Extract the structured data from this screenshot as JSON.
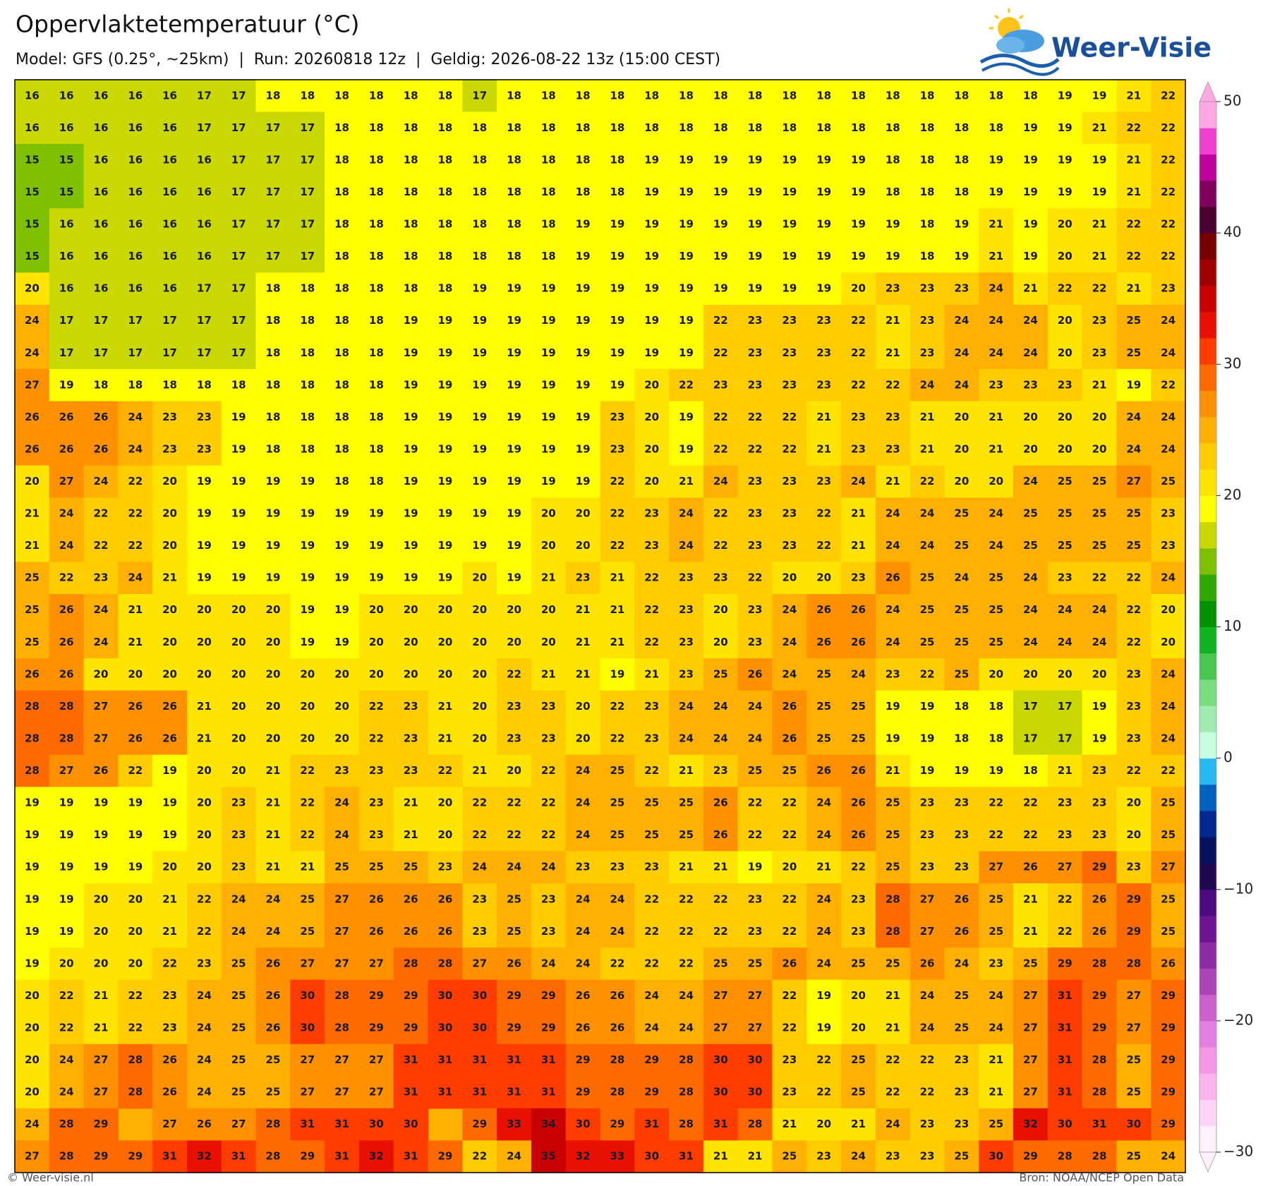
{
  "header": {
    "title": "Oppervlaktetemperatuur (°C)",
    "subtitle": "Model: GFS (0.25°, ~25km)  |  Run: 20260818 12z  |  Geldig: 2026-08-22 13z (15:00 CEST)"
  },
  "logo": "Weer-Visie",
  "grid": {
    "rows": [
      [
        16,
        16,
        16,
        16,
        16,
        17,
        17,
        18,
        18,
        18,
        18,
        18,
        18,
        17,
        18,
        18,
        18,
        18,
        18,
        18,
        18,
        18,
        18,
        18,
        18,
        18,
        18,
        18,
        18,
        18,
        19,
        19,
        21,
        22
      ],
      [
        16,
        16,
        16,
        16,
        16,
        17,
        17,
        17,
        17,
        18,
        18,
        18,
        18,
        18,
        18,
        18,
        18,
        18,
        18,
        18,
        18,
        18,
        18,
        18,
        18,
        18,
        18,
        18,
        18,
        19,
        19,
        21,
        22,
        22
      ],
      [
        15,
        15,
        16,
        16,
        16,
        16,
        17,
        17,
        17,
        18,
        18,
        18,
        18,
        18,
        18,
        18,
        18,
        18,
        19,
        19,
        19,
        19,
        19,
        19,
        19,
        18,
        18,
        18,
        19,
        19,
        19,
        19,
        21,
        22
      ],
      [
        15,
        15,
        16,
        16,
        16,
        16,
        17,
        17,
        17,
        18,
        18,
        18,
        18,
        18,
        18,
        18,
        18,
        18,
        19,
        19,
        19,
        19,
        19,
        19,
        19,
        18,
        18,
        18,
        19,
        19,
        19,
        19,
        21,
        22
      ],
      [
        15,
        16,
        16,
        16,
        16,
        16,
        17,
        17,
        17,
        18,
        18,
        18,
        18,
        18,
        18,
        18,
        19,
        19,
        19,
        19,
        19,
        19,
        19,
        19,
        19,
        19,
        18,
        19,
        21,
        19,
        20,
        21,
        22,
        22
      ],
      [
        15,
        16,
        16,
        16,
        16,
        16,
        17,
        17,
        17,
        18,
        18,
        18,
        18,
        18,
        18,
        18,
        19,
        19,
        19,
        19,
        19,
        19,
        19,
        19,
        19,
        19,
        18,
        19,
        21,
        19,
        20,
        21,
        22,
        22
      ],
      [
        20,
        16,
        16,
        16,
        16,
        17,
        17,
        18,
        18,
        18,
        18,
        18,
        18,
        19,
        19,
        19,
        19,
        19,
        19,
        19,
        19,
        19,
        19,
        19,
        20,
        23,
        23,
        23,
        24,
        21,
        22,
        22,
        21,
        23
      ],
      [
        24,
        17,
        17,
        17,
        17,
        17,
        17,
        18,
        18,
        18,
        18,
        19,
        19,
        19,
        19,
        19,
        19,
        19,
        19,
        19,
        22,
        23,
        23,
        23,
        22,
        21,
        23,
        24,
        24,
        24,
        20,
        23,
        25,
        24
      ],
      [
        24,
        17,
        17,
        17,
        17,
        17,
        17,
        18,
        18,
        18,
        18,
        19,
        19,
        19,
        19,
        19,
        19,
        19,
        19,
        19,
        22,
        23,
        23,
        23,
        22,
        21,
        23,
        24,
        24,
        24,
        20,
        23,
        25,
        24
      ],
      [
        27,
        19,
        18,
        18,
        18,
        18,
        18,
        18,
        18,
        18,
        18,
        19,
        19,
        19,
        19,
        19,
        19,
        19,
        20,
        22,
        23,
        23,
        23,
        23,
        22,
        22,
        24,
        24,
        23,
        23,
        23,
        21,
        19,
        22
      ],
      [
        26,
        26,
        26,
        24,
        23,
        23,
        19,
        18,
        18,
        18,
        18,
        19,
        19,
        19,
        19,
        19,
        19,
        23,
        20,
        19,
        22,
        22,
        22,
        21,
        23,
        23,
        21,
        20,
        21,
        20,
        20,
        20,
        24,
        24
      ],
      [
        26,
        26,
        26,
        24,
        23,
        23,
        19,
        18,
        18,
        18,
        18,
        19,
        19,
        19,
        19,
        19,
        19,
        23,
        20,
        19,
        22,
        22,
        22,
        21,
        23,
        23,
        21,
        20,
        21,
        20,
        20,
        20,
        24,
        24
      ],
      [
        20,
        27,
        24,
        22,
        20,
        19,
        19,
        19,
        19,
        18,
        18,
        19,
        19,
        19,
        19,
        19,
        19,
        22,
        20,
        21,
        24,
        23,
        23,
        23,
        24,
        21,
        22,
        20,
        20,
        24,
        25,
        25,
        27,
        25
      ],
      [
        21,
        24,
        22,
        22,
        20,
        19,
        19,
        19,
        19,
        19,
        19,
        19,
        19,
        19,
        19,
        20,
        20,
        22,
        23,
        24,
        22,
        23,
        23,
        22,
        21,
        24,
        24,
        25,
        24,
        25,
        25,
        25,
        25,
        23
      ],
      [
        21,
        24,
        22,
        22,
        20,
        19,
        19,
        19,
        19,
        19,
        19,
        19,
        19,
        19,
        19,
        20,
        20,
        22,
        23,
        24,
        22,
        23,
        23,
        22,
        21,
        24,
        24,
        25,
        24,
        25,
        25,
        25,
        25,
        23
      ],
      [
        25,
        22,
        23,
        24,
        21,
        19,
        19,
        19,
        19,
        19,
        19,
        19,
        19,
        20,
        19,
        21,
        23,
        21,
        22,
        23,
        23,
        22,
        20,
        20,
        23,
        26,
        25,
        24,
        25,
        24,
        23,
        22,
        22,
        24
      ],
      [
        25,
        26,
        24,
        21,
        20,
        20,
        20,
        20,
        19,
        19,
        20,
        20,
        20,
        20,
        20,
        20,
        21,
        21,
        22,
        23,
        20,
        23,
        24,
        26,
        26,
        24,
        25,
        25,
        25,
        24,
        24,
        24,
        22,
        20
      ],
      [
        25,
        26,
        24,
        21,
        20,
        20,
        20,
        20,
        19,
        19,
        20,
        20,
        20,
        20,
        20,
        20,
        21,
        21,
        22,
        23,
        20,
        23,
        24,
        26,
        26,
        24,
        25,
        25,
        25,
        24,
        24,
        24,
        22,
        20
      ],
      [
        26,
        26,
        20,
        20,
        20,
        20,
        20,
        20,
        20,
        20,
        20,
        20,
        20,
        20,
        22,
        21,
        21,
        19,
        21,
        23,
        25,
        26,
        24,
        25,
        24,
        23,
        22,
        25,
        20,
        20,
        20,
        20,
        23,
        24
      ],
      [
        28,
        28,
        27,
        26,
        26,
        21,
        20,
        20,
        20,
        20,
        22,
        23,
        21,
        20,
        23,
        23,
        20,
        22,
        23,
        24,
        24,
        24,
        26,
        25,
        25,
        19,
        19,
        18,
        18,
        17,
        17,
        19,
        23,
        24
      ],
      [
        28,
        28,
        27,
        26,
        26,
        21,
        20,
        20,
        20,
        20,
        22,
        23,
        21,
        20,
        23,
        23,
        20,
        22,
        23,
        24,
        24,
        24,
        26,
        25,
        25,
        19,
        19,
        18,
        18,
        17,
        17,
        19,
        23,
        24
      ],
      [
        28,
        27,
        26,
        22,
        19,
        20,
        20,
        21,
        22,
        23,
        23,
        23,
        22,
        21,
        20,
        22,
        24,
        25,
        22,
        21,
        23,
        25,
        25,
        26,
        26,
        21,
        19,
        19,
        19,
        18,
        21,
        23,
        22,
        22
      ],
      [
        19,
        19,
        19,
        19,
        19,
        20,
        23,
        21,
        22,
        24,
        23,
        21,
        20,
        22,
        22,
        22,
        24,
        25,
        25,
        25,
        26,
        22,
        22,
        24,
        26,
        25,
        23,
        23,
        22,
        22,
        23,
        23,
        20,
        25
      ],
      [
        19,
        19,
        19,
        19,
        19,
        20,
        23,
        21,
        22,
        24,
        23,
        21,
        20,
        22,
        22,
        22,
        24,
        25,
        25,
        25,
        26,
        22,
        22,
        24,
        26,
        25,
        23,
        23,
        22,
        22,
        23,
        23,
        20,
        25
      ],
      [
        19,
        19,
        19,
        19,
        20,
        20,
        23,
        21,
        21,
        25,
        25,
        25,
        23,
        24,
        24,
        24,
        23,
        23,
        23,
        21,
        21,
        19,
        20,
        21,
        22,
        25,
        23,
        23,
        27,
        26,
        27,
        29,
        23,
        27
      ],
      [
        19,
        19,
        20,
        20,
        21,
        22,
        24,
        24,
        25,
        27,
        26,
        26,
        26,
        23,
        25,
        23,
        24,
        24,
        22,
        22,
        22,
        23,
        22,
        24,
        23,
        28,
        27,
        26,
        25,
        21,
        22,
        26,
        29,
        25
      ],
      [
        19,
        19,
        20,
        20,
        21,
        22,
        24,
        24,
        25,
        27,
        26,
        26,
        26,
        23,
        25,
        23,
        24,
        24,
        22,
        22,
        22,
        23,
        22,
        24,
        23,
        28,
        27,
        26,
        25,
        21,
        22,
        26,
        29,
        25
      ],
      [
        19,
        20,
        20,
        20,
        22,
        23,
        25,
        26,
        27,
        27,
        27,
        28,
        28,
        27,
        26,
        24,
        24,
        22,
        22,
        22,
        25,
        25,
        26,
        24,
        25,
        25,
        26,
        24,
        23,
        25,
        29,
        28,
        28,
        26
      ],
      [
        20,
        22,
        21,
        22,
        23,
        24,
        25,
        26,
        30,
        28,
        29,
        29,
        30,
        30,
        29,
        29,
        26,
        26,
        24,
        24,
        27,
        27,
        22,
        19,
        20,
        21,
        24,
        25,
        24,
        27,
        31,
        29,
        27,
        29
      ],
      [
        20,
        22,
        21,
        22,
        23,
        24,
        25,
        26,
        30,
        28,
        29,
        29,
        30,
        30,
        29,
        29,
        26,
        26,
        24,
        24,
        27,
        27,
        22,
        19,
        20,
        21,
        24,
        25,
        24,
        27,
        31,
        29,
        27,
        29
      ],
      [
        20,
        24,
        27,
        28,
        26,
        24,
        25,
        25,
        27,
        27,
        27,
        31,
        31,
        31,
        31,
        31,
        29,
        28,
        29,
        28,
        30,
        30,
        23,
        22,
        25,
        22,
        22,
        23,
        21,
        27,
        31,
        28,
        25,
        29
      ],
      [
        20,
        24,
        27,
        28,
        26,
        24,
        25,
        25,
        27,
        27,
        27,
        31,
        31,
        31,
        31,
        31,
        29,
        28,
        29,
        28,
        30,
        30,
        23,
        22,
        25,
        22,
        22,
        23,
        21,
        27,
        31,
        28,
        25,
        29
      ],
      [
        24,
        28,
        29,
        null,
        27,
        26,
        27,
        28,
        31,
        31,
        30,
        30,
        null,
        29,
        33,
        34,
        30,
        29,
        31,
        28,
        31,
        28,
        21,
        20,
        21,
        24,
        23,
        23,
        25,
        32,
        30,
        31,
        30,
        29
      ],
      [
        27,
        28,
        29,
        29,
        31,
        32,
        31,
        28,
        29,
        31,
        32,
        31,
        29,
        22,
        24,
        35,
        32,
        33,
        30,
        31,
        21,
        21,
        25,
        23,
        24,
        23,
        23,
        25,
        30,
        29,
        28,
        28,
        25,
        24
      ]
    ]
  },
  "colorbar": {
    "lim": [
      -30,
      50
    ],
    "ticks": [
      {
        "value": -30,
        "label": "−30"
      },
      {
        "value": -20,
        "label": "−20"
      },
      {
        "value": -10,
        "label": "−10"
      },
      0,
      10,
      20,
      30,
      40,
      50
    ],
    "colors": [
      "#fff0fc",
      "#ffd4f6",
      "#fcb4ee",
      "#f498e6",
      "#e47ee0",
      "#cc60cc",
      "#ac44b8",
      "#8c2ca4",
      "#6c1494",
      "#4c0a80",
      "#200850",
      "#081060",
      "#002890",
      "#0060c0",
      "#28b8f0",
      "#c8ffe0",
      "#a0ecb0",
      "#78dc80",
      "#48c850",
      "#10b420",
      "#009000",
      "#30a800",
      "#7cc000",
      "#c8d800",
      "#ffff00",
      "#ffe400",
      "#ffcc00",
      "#ffb000",
      "#ff9000",
      "#ff6a00",
      "#ff3c00",
      "#e81000",
      "#c80000",
      "#a00000",
      "#780000",
      "#4a0030",
      "#80005c",
      "#c0009c",
      "#f040d0",
      "#ffa8e4"
    ]
  },
  "footer": {
    "left": "© Weer-visie.nl",
    "right": "Bron: NOAA/NCEP Open Data"
  }
}
